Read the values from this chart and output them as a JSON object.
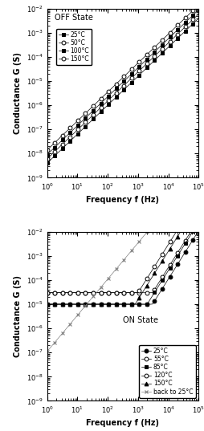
{
  "freq_range": [
    1,
    100000.0
  ],
  "ylim": [
    1e-09,
    0.01
  ],
  "ylabel": "Conductance G (S)",
  "xlabel": "Frequency f (Hz)",
  "off_title": "OFF State",
  "on_title": "ON State",
  "off_series": [
    {
      "label": "25°C",
      "marker": "s",
      "filled": true,
      "G0": 5e-09,
      "alpha": 1.0
    },
    {
      "label": "50°C",
      "marker": "o",
      "filled": false,
      "G0": 8e-09,
      "alpha": 1.0
    },
    {
      "label": "100°C",
      "marker": "s",
      "filled": true,
      "G0": 1.2e-08,
      "alpha": 1.0
    },
    {
      "label": "150°C",
      "marker": "o",
      "filled": false,
      "G0": 2e-08,
      "alpha": 1.0
    }
  ],
  "on_flat_series": [
    {
      "label": "25°C",
      "marker": "o",
      "filled": true,
      "G_flat": 1e-05,
      "f_rise": 3000,
      "alpha_rise": 2.0
    },
    {
      "label": "55°C",
      "marker": "o",
      "filled": false,
      "G_flat": 3e-05,
      "f_rise": 3000,
      "alpha_rise": 2.0
    },
    {
      "label": "85°C",
      "marker": "s",
      "filled": true,
      "G_flat": 1e-05,
      "f_rise": 2000,
      "alpha_rise": 2.0
    },
    {
      "label": "120°C",
      "marker": "o",
      "filled": false,
      "G_flat": 3e-05,
      "f_rise": 1000,
      "alpha_rise": 2.0
    },
    {
      "label": "150°C",
      "marker": "^",
      "filled": true,
      "G_flat": 1e-05,
      "f_rise": 800,
      "alpha_rise": 2.0
    }
  ],
  "on_back_series": {
    "label": "back to 25°C",
    "marker": "x",
    "G0": 1.1e-07,
    "alpha": 1.5
  }
}
